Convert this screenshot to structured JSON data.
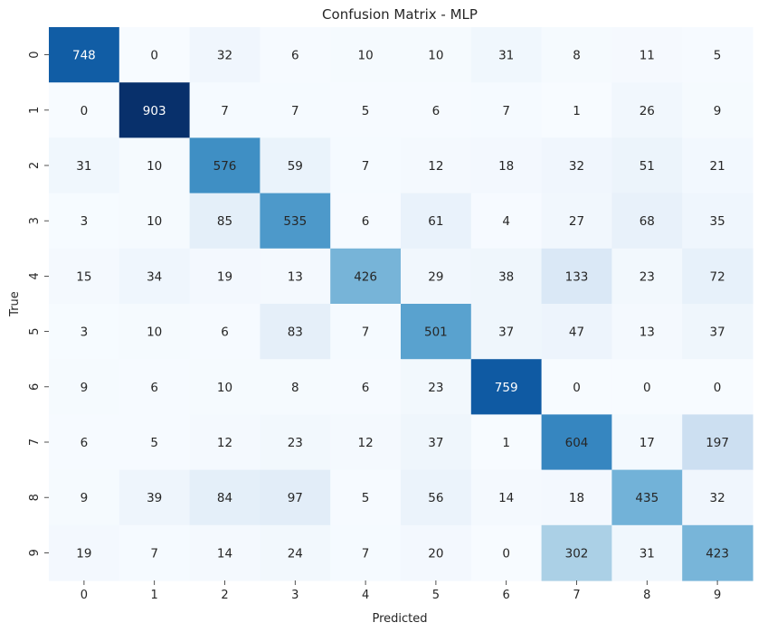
{
  "chart_data": {
    "type": "heatmap",
    "title": "Confusion Matrix - MLP",
    "xlabel": "Predicted",
    "ylabel": "True",
    "x_labels": [
      "0",
      "1",
      "2",
      "3",
      "4",
      "5",
      "6",
      "7",
      "8",
      "9"
    ],
    "y_labels": [
      "0",
      "1",
      "2",
      "3",
      "4",
      "5",
      "6",
      "7",
      "8",
      "9"
    ],
    "values": [
      [
        748,
        0,
        32,
        6,
        10,
        10,
        31,
        8,
        11,
        5
      ],
      [
        0,
        903,
        7,
        7,
        5,
        6,
        7,
        1,
        26,
        9
      ],
      [
        31,
        10,
        576,
        59,
        7,
        12,
        18,
        32,
        51,
        21
      ],
      [
        3,
        10,
        85,
        535,
        6,
        61,
        4,
        27,
        68,
        35
      ],
      [
        15,
        34,
        19,
        13,
        426,
        29,
        38,
        133,
        23,
        72
      ],
      [
        3,
        10,
        6,
        83,
        7,
        501,
        37,
        47,
        13,
        37
      ],
      [
        9,
        6,
        10,
        8,
        6,
        23,
        759,
        0,
        0,
        0
      ],
      [
        6,
        5,
        12,
        23,
        12,
        37,
        1,
        604,
        17,
        197
      ],
      [
        9,
        39,
        84,
        97,
        5,
        56,
        14,
        18,
        435,
        32
      ],
      [
        19,
        7,
        14,
        24,
        7,
        20,
        0,
        302,
        31,
        423
      ]
    ],
    "colormap": "Blues",
    "vmin": 0,
    "vmax": 903,
    "annotations": true,
    "colorbar": false
  }
}
